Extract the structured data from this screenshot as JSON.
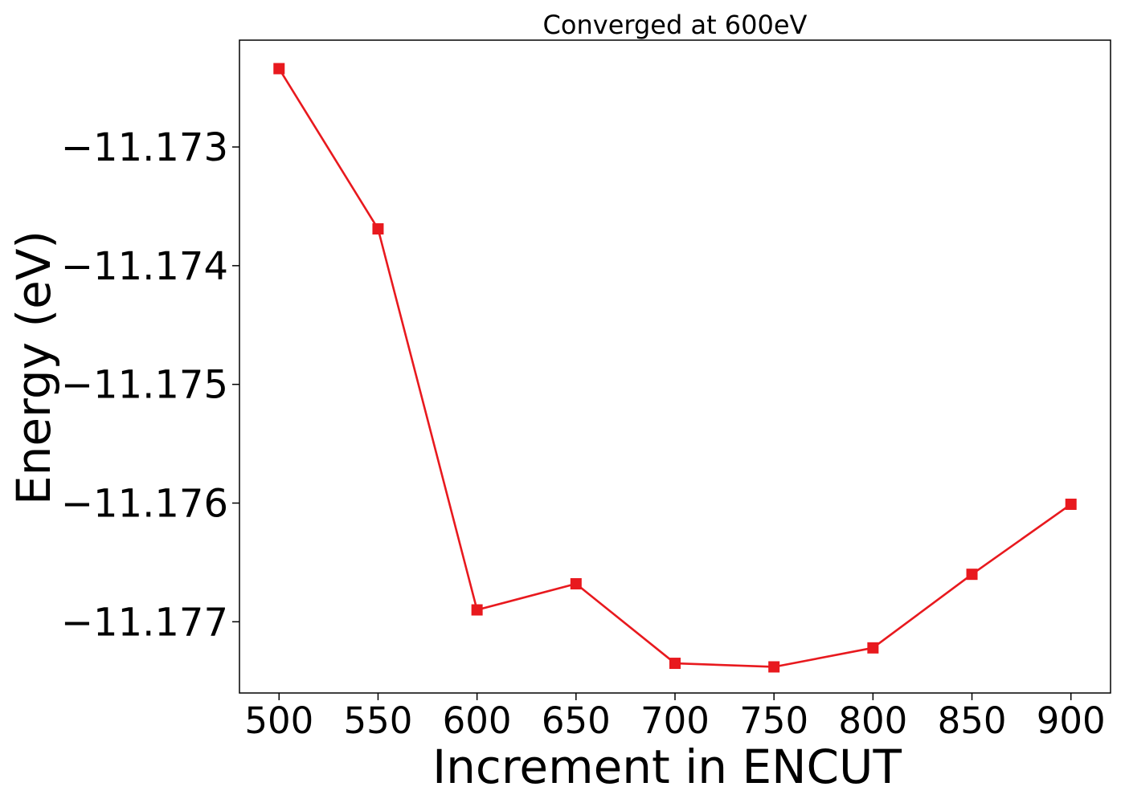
{
  "chart_data": {
    "type": "line",
    "title": "Converged at 600eV",
    "xlabel": "Increment in ENCUT",
    "ylabel": "Energy (eV)",
    "x": [
      500,
      550,
      600,
      650,
      700,
      750,
      800,
      850,
      900
    ],
    "series": [
      {
        "values": [
          -11.17234,
          -11.17369,
          -11.1769,
          -11.17668,
          -11.17735,
          -11.17738,
          -11.17722,
          -11.1766,
          -11.17601
        ]
      }
    ],
    "xticks": [
      500,
      550,
      600,
      650,
      700,
      750,
      800,
      850,
      900
    ],
    "xtick_labels": [
      "500",
      "550",
      "600",
      "650",
      "700",
      "750",
      "800",
      "850",
      "900"
    ],
    "yticks": [
      -11.177,
      -11.176,
      -11.175,
      -11.174,
      -11.173
    ],
    "ytick_labels": [
      "−11.177",
      "−11.176",
      "−11.175",
      "−11.174",
      "−11.173"
    ],
    "xlim": [
      480,
      920
    ],
    "ylim": [
      -11.1776,
      -11.1721
    ],
    "marker": "square",
    "line_color": "#e8191e",
    "grid": false,
    "legend": false
  }
}
